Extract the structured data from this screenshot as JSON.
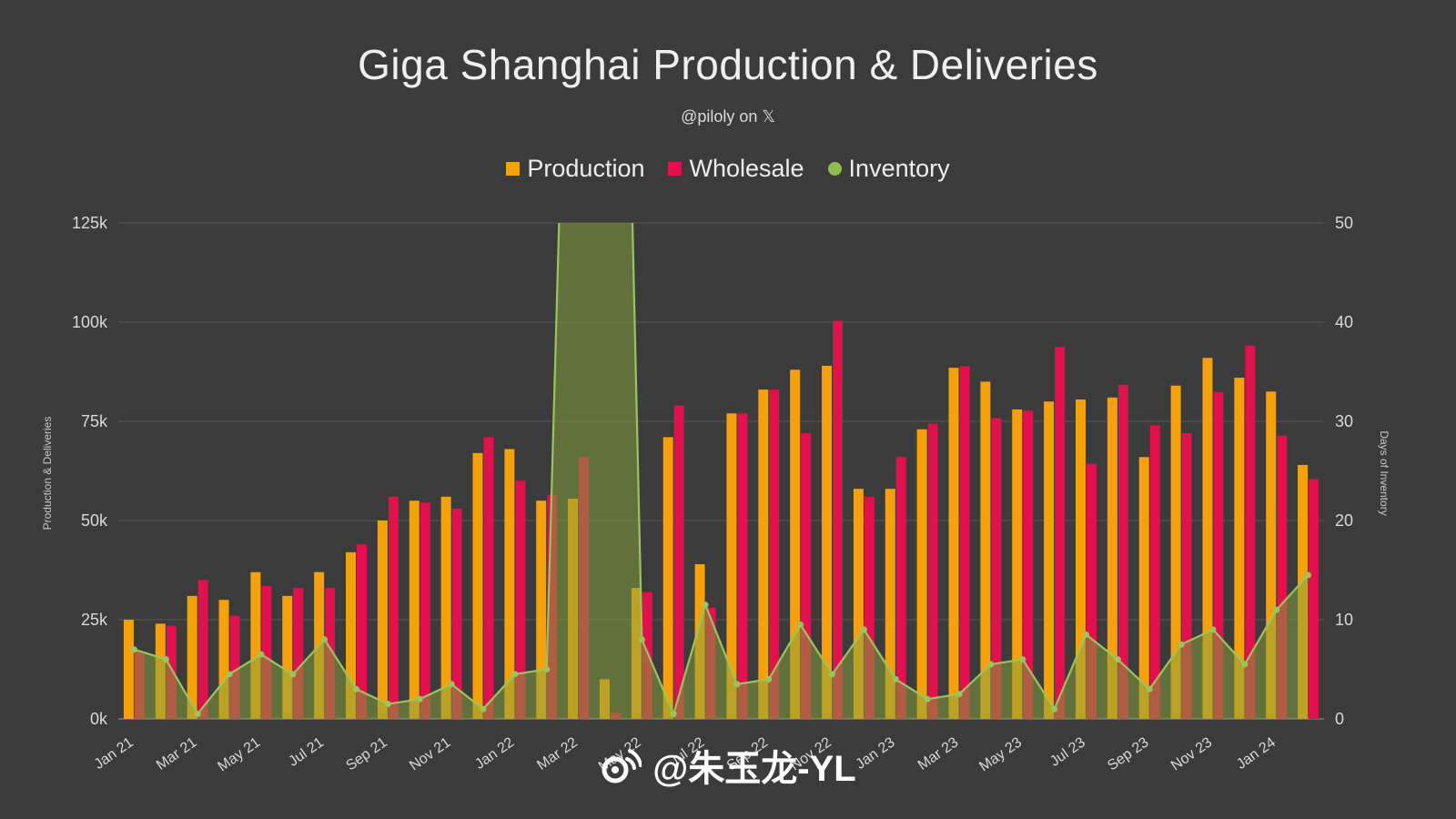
{
  "title": "Giga Shanghai Production & Deliveries",
  "subtitle": "@piloly on 𝕏",
  "watermark": "@朱玉龙-YL",
  "colors": {
    "background": "#3b3b3b",
    "production": "#f4a10c",
    "wholesale": "#e0114d",
    "inventory_line": "#9cc45e",
    "inventory_fill": "#87a33c",
    "grid": "#575757",
    "text": "#d9d9d9"
  },
  "legend": [
    {
      "label": "Production",
      "color": "#f4a10c",
      "shape": "square"
    },
    {
      "label": "Wholesale",
      "color": "#e0114d",
      "shape": "square"
    },
    {
      "label": "Inventory",
      "color": "#8fbc4f",
      "shape": "circle"
    }
  ],
  "chart_data": {
    "type": "bar",
    "subtype": "grouped bars + area line on secondary axis",
    "categories": [
      "Jan 21",
      "Feb 21",
      "Mar 21",
      "Apr 21",
      "May 21",
      "Jun 21",
      "Jul 21",
      "Aug 21",
      "Sep 21",
      "Oct 21",
      "Nov 21",
      "Dec 21",
      "Jan 22",
      "Feb 22",
      "Mar 22",
      "Apr 22",
      "May 22",
      "Jun 22",
      "Jul 22",
      "Aug 22",
      "Sep 22",
      "Oct 22",
      "Nov 22",
      "Dec 22",
      "Jan 23",
      "Feb 23",
      "Mar 23",
      "Apr 23",
      "May 23",
      "Jun 23",
      "Jul 23",
      "Aug 23",
      "Sep 23",
      "Oct 23",
      "Nov 23",
      "Dec 23",
      "Jan 24",
      "Feb 24"
    ],
    "x_tick_every": 2,
    "series": [
      {
        "name": "Production",
        "type": "bar",
        "axis": "left",
        "color": "#f4a10c",
        "values": [
          25000,
          24000,
          31000,
          30000,
          37000,
          31000,
          37000,
          42000,
          50000,
          55000,
          56000,
          67000,
          68000,
          55000,
          55500,
          10000,
          33000,
          71000,
          39000,
          77000,
          83000,
          88000,
          89000,
          58000,
          58000,
          73000,
          88500,
          85000,
          78000,
          80000,
          80500,
          81000,
          66000,
          84000,
          91000,
          86000,
          82500,
          64000
        ]
      },
      {
        "name": "Wholesale",
        "type": "bar",
        "axis": "left",
        "color": "#e0114d",
        "values": [
          17000,
          23500,
          35000,
          26000,
          33500,
          33000,
          33000,
          44000,
          56000,
          54500,
          53000,
          71000,
          60000,
          56500,
          66000,
          1500,
          32000,
          79000,
          28000,
          77000,
          83000,
          72000,
          100300,
          56000,
          66000,
          74400,
          88900,
          75800,
          77700,
          93700,
          64300,
          84200,
          74000,
          72000,
          82400,
          94100,
          71400,
          60400
        ]
      },
      {
        "name": "Inventory",
        "type": "area-line",
        "axis": "right",
        "color": "#9cc45e",
        "values": [
          7,
          6,
          0.5,
          4.5,
          6.5,
          4.5,
          8,
          3,
          1.5,
          2,
          3.5,
          1,
          4.5,
          5,
          120,
          150,
          8,
          0.5,
          11.5,
          3.5,
          4,
          9.5,
          4.5,
          9,
          4,
          2,
          2.5,
          5.5,
          6,
          1,
          8.5,
          6,
          3,
          7.5,
          9,
          5.5,
          11,
          14.5
        ],
        "note_offscale": "Mar 22 and Apr 22 spike above the 50-day axis maximum (clipped at chart top)"
      }
    ],
    "left_axis": {
      "label": "Production & Deliveries",
      "min": 0,
      "max": 125000,
      "tick_values": [
        0,
        25000,
        50000,
        75000,
        100000,
        125000
      ],
      "tick_labels": [
        "0k",
        "25k",
        "50k",
        "75k",
        "100k",
        "125k"
      ]
    },
    "right_axis": {
      "label": "Days of Inventory",
      "min": 0,
      "max": 50,
      "tick_values": [
        0,
        10,
        20,
        30,
        40,
        50
      ],
      "tick_labels": [
        "0",
        "10",
        "20",
        "30",
        "40",
        "50"
      ]
    },
    "grid": "horizontal",
    "legend_position": "top-center"
  }
}
